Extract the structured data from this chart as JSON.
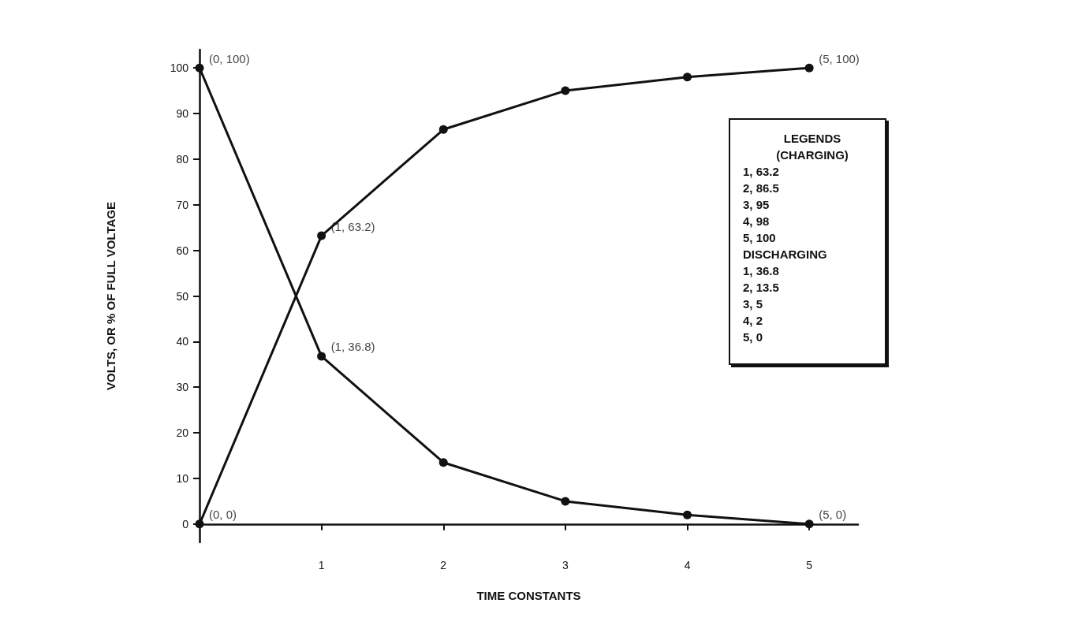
{
  "chart_data": {
    "type": "line",
    "xlabel": "TIME CONSTANTS",
    "ylabel": "VOLTS, OR % OF FULL VOLTAGE",
    "x": [
      0,
      1,
      2,
      3,
      4,
      5
    ],
    "series": [
      {
        "color": "#111111",
        "values": [
          0,
          63.2,
          86.5,
          95,
          98,
          100
        ]
      },
      {
        "color": "#111111",
        "values": [
          100,
          36.8,
          13.5,
          5,
          2,
          0
        ]
      }
    ],
    "xlim": [
      0,
      5.4
    ],
    "xticks": [
      1,
      2,
      3,
      4,
      5
    ],
    "ylim": [
      -4,
      104
    ],
    "yticks": [
      0,
      10,
      20,
      30,
      40,
      50,
      60,
      70,
      80,
      90,
      100
    ],
    "marker": "circle",
    "line_style": "solid",
    "annotations": [
      {
        "text": "(0, 100)",
        "x": 0,
        "y": 100
      },
      {
        "text": "(5, 100)",
        "x": 5,
        "y": 100
      },
      {
        "text": "(1, 63.2)",
        "x": 1,
        "y": 63.2
      },
      {
        "text": "(1, 36.8)",
        "x": 1,
        "y": 36.8
      },
      {
        "text": "(0, 0)",
        "x": 0,
        "y": 0
      },
      {
        "text": "(5, 0)",
        "x": 5,
        "y": 0
      },
      "LEGENDS",
      "(CHARGING)",
      "1, 63.2",
      "2, 86.5",
      "3, 95",
      "4, 98",
      "5, 100",
      "DISCHARGING",
      "1, 36.8",
      "2, 13.5",
      "3, 5",
      "4, 2",
      "5, 0"
    ]
  }
}
